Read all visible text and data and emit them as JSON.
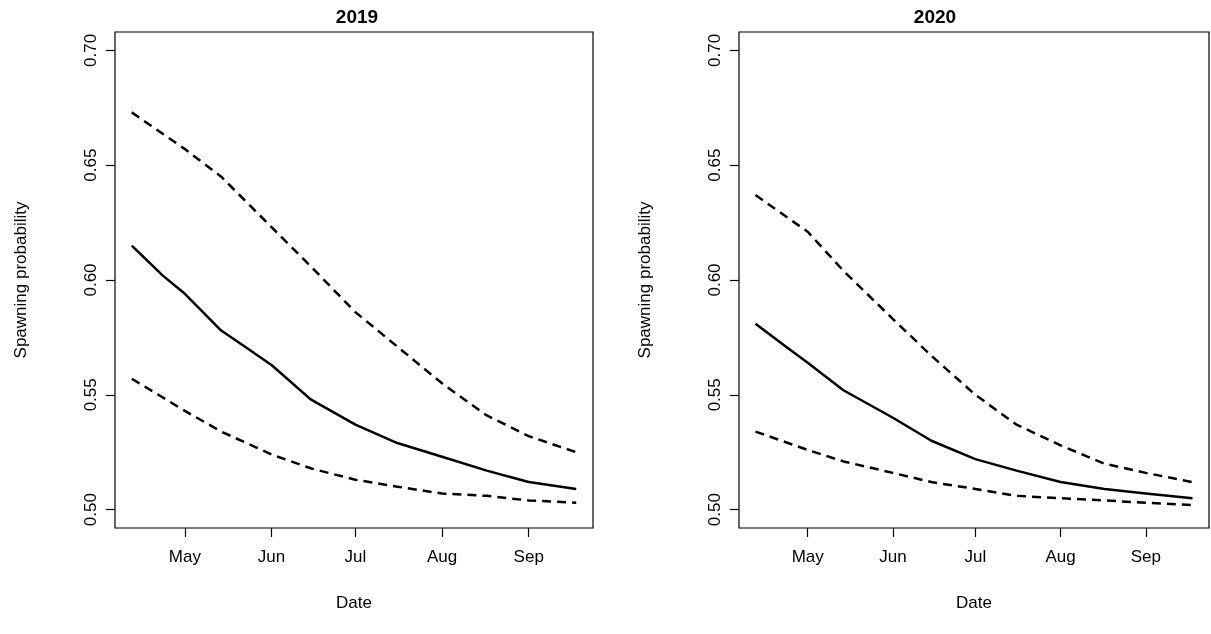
{
  "chart_data": [
    {
      "type": "line",
      "title": "2019",
      "xlabel": "Date",
      "ylabel": "Spawning probability",
      "x": [
        "--04-12",
        "--04-23",
        "--05-01",
        "--05-14",
        "--06-01",
        "--06-15",
        "--07-01",
        "--07-16",
        "--08-01",
        "--08-17",
        "--09-01",
        "--09-18"
      ],
      "series": [
        {
          "color": "#000000",
          "line_style": "dashed",
          "values": [
            0.673,
            null,
            0.657,
            0.645,
            0.623,
            0.606,
            0.586,
            0.571,
            0.555,
            0.541,
            0.532,
            0.525
          ]
        },
        {
          "color": "#000000",
          "line_style": "solid",
          "values": [
            0.615,
            0.602,
            0.594,
            0.578,
            0.563,
            0.548,
            0.537,
            0.529,
            0.523,
            0.517,
            0.512,
            0.509
          ]
        },
        {
          "color": "#000000",
          "line_style": "dashed",
          "values": [
            0.557,
            null,
            0.543,
            0.534,
            0.524,
            0.518,
            0.513,
            0.51,
            0.507,
            0.506,
            0.504,
            0.503
          ]
        }
      ],
      "xlim": [
        "--04-06",
        "--09-24"
      ],
      "xticks": [
        {
          "value": "--05-01",
          "label": "May"
        },
        {
          "value": "--06-01",
          "label": "Jun"
        },
        {
          "value": "--07-01",
          "label": "Jul"
        },
        {
          "value": "--08-01",
          "label": "Aug"
        },
        {
          "value": "--09-01",
          "label": "Sep"
        }
      ],
      "ylim": [
        0.492,
        0.708
      ],
      "yticks": [
        {
          "value": 0.5,
          "label": "0.50"
        },
        {
          "value": 0.55,
          "label": "0.55"
        },
        {
          "value": 0.6,
          "label": "0.60"
        },
        {
          "value": 0.65,
          "label": "0.65"
        },
        {
          "value": 0.7,
          "label": "0.70"
        }
      ]
    },
    {
      "type": "line",
      "title": "2020",
      "xlabel": "Date",
      "ylabel": "Spawning probability",
      "x": [
        "--04-12",
        "--04-23",
        "--05-01",
        "--05-14",
        "--06-01",
        "--06-15",
        "--07-01",
        "--07-16",
        "--08-01",
        "--08-17",
        "--09-01",
        "--09-18"
      ],
      "series": [
        {
          "color": "#000000",
          "line_style": "dashed",
          "values": [
            0.637,
            null,
            0.621,
            0.604,
            0.583,
            0.567,
            0.55,
            0.537,
            0.528,
            0.52,
            0.516,
            0.512
          ]
        },
        {
          "color": "#000000",
          "line_style": "solid",
          "values": [
            0.581,
            0.571,
            0.564,
            0.552,
            0.54,
            0.53,
            0.522,
            0.517,
            0.512,
            0.509,
            0.507,
            0.505
          ]
        },
        {
          "color": "#000000",
          "line_style": "dashed",
          "values": [
            0.534,
            null,
            0.526,
            0.521,
            0.516,
            0.512,
            0.509,
            0.506,
            0.505,
            0.504,
            0.503,
            0.502
          ]
        }
      ],
      "xlim": [
        "--04-06",
        "--09-24"
      ],
      "xticks": [
        {
          "value": "--05-01",
          "label": "May"
        },
        {
          "value": "--06-01",
          "label": "Jun"
        },
        {
          "value": "--07-01",
          "label": "Jul"
        },
        {
          "value": "--08-01",
          "label": "Aug"
        },
        {
          "value": "--09-01",
          "label": "Sep"
        }
      ],
      "ylim": [
        0.492,
        0.708
      ],
      "yticks": [
        {
          "value": 0.5,
          "label": "0.50"
        },
        {
          "value": 0.55,
          "label": "0.55"
        },
        {
          "value": 0.6,
          "label": "0.60"
        },
        {
          "value": 0.65,
          "label": "0.65"
        },
        {
          "value": 0.7,
          "label": "0.70"
        }
      ]
    }
  ]
}
